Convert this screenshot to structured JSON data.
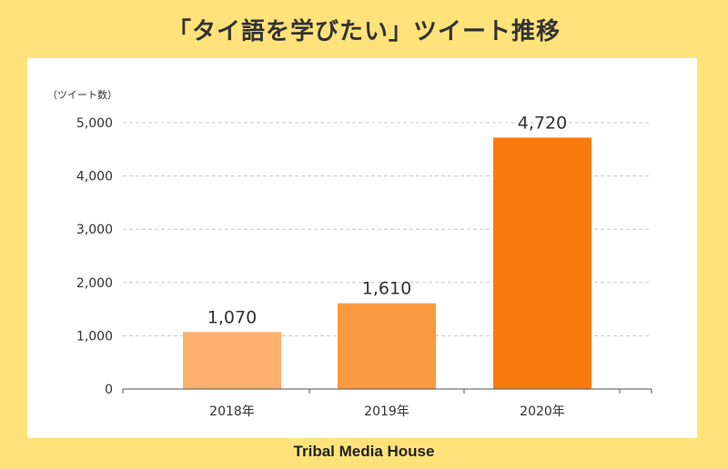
{
  "title": "「タイ語を学びたい」ツイート推移",
  "footer": "Tribal Media House",
  "colors": {
    "background": "#FFE27A",
    "panel": "#FFFFFF",
    "bar_2018": "#FBB06F",
    "bar_2019": "#F99A40",
    "bar_2020": "#F87B10",
    "text": "#333333",
    "grid": "#C8C8C8"
  },
  "chart_data": {
    "type": "bar",
    "categories": [
      "2018年",
      "2019年",
      "2020年"
    ],
    "values": [
      1070,
      1610,
      4720
    ],
    "value_labels": [
      "1,070",
      "1,610",
      "4,720"
    ],
    "ylabel": "（ツイート数）",
    "ylim": [
      0,
      5000
    ],
    "yticks": [
      0,
      1000,
      2000,
      3000,
      4000,
      5000
    ],
    "ytick_labels": [
      "0",
      "1,000",
      "2,000",
      "3,000",
      "4,000",
      "5,000"
    ],
    "grid": true,
    "grid_style": "dashed"
  }
}
